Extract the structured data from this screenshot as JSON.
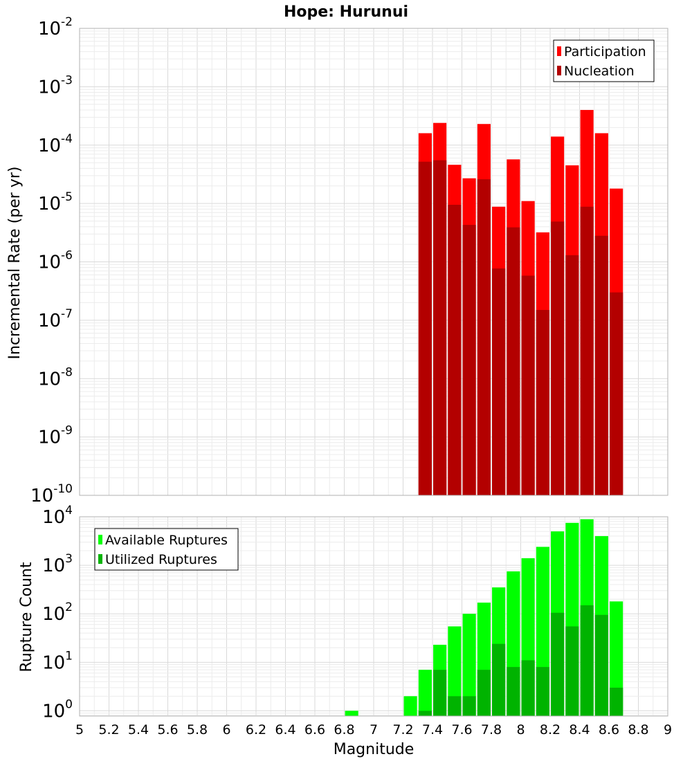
{
  "chart_data": [
    {
      "type": "bar",
      "title": "Hope: Hurunui",
      "ylabel": "Incremental Rate (per yr)",
      "yscale": "log",
      "ylim": [
        1e-10,
        0.01
      ],
      "xlim": [
        5,
        9
      ],
      "y_ticks": [
        {
          "base": "10",
          "exp": "-10"
        },
        {
          "base": "10",
          "exp": "-9"
        },
        {
          "base": "10",
          "exp": "-8"
        },
        {
          "base": "10",
          "exp": "-7"
        },
        {
          "base": "10",
          "exp": "-6"
        },
        {
          "base": "10",
          "exp": "-5"
        },
        {
          "base": "10",
          "exp": "-4"
        },
        {
          "base": "10",
          "exp": "-3"
        },
        {
          "base": "10",
          "exp": "-2"
        }
      ],
      "legend_position": "top-right",
      "grid": true,
      "x": [
        7.35,
        7.45,
        7.55,
        7.65,
        7.75,
        7.85,
        7.95,
        8.05,
        8.15,
        8.25,
        8.35,
        8.45,
        8.55,
        8.65
      ],
      "series": [
        {
          "name": "Participation",
          "color": "#ff0000",
          "values": [
            0.00016,
            0.00024,
            4.6e-05,
            2.7e-05,
            0.00023,
            8.8e-06,
            5.7e-05,
            1.1e-05,
            3.2e-06,
            0.00014,
            4.5e-05,
            0.0004,
            0.00016,
            1.8e-05
          ]
        },
        {
          "name": "Nucleation",
          "color": "#b30000",
          "values": [
            5.2e-05,
            5.5e-05,
            9.5e-06,
            4.3e-06,
            2.6e-05,
            7.7e-07,
            3.9e-06,
            5.8e-07,
            1.5e-07,
            4.9e-06,
            1.3e-06,
            8.8e-06,
            2.8e-06,
            3e-07
          ]
        }
      ]
    },
    {
      "type": "bar",
      "ylabel": "Rupture Count",
      "xlabel": "Magnitude",
      "yscale": "log",
      "ylim": [
        0.78,
        10000
      ],
      "xlim": [
        5,
        9
      ],
      "x_ticks": [
        "5",
        "5.2",
        "5.4",
        "5.6",
        "5.8",
        "6",
        "6.2",
        "6.4",
        "6.6",
        "6.8",
        "7",
        "7.2",
        "7.4",
        "7.6",
        "7.8",
        "8",
        "8.2",
        "8.4",
        "8.6",
        "8.8",
        "9"
      ],
      "y_ticks": [
        {
          "base": "10",
          "exp": "0"
        },
        {
          "base": "10",
          "exp": "1"
        },
        {
          "base": "10",
          "exp": "2"
        },
        {
          "base": "10",
          "exp": "3"
        },
        {
          "base": "10",
          "exp": "4"
        }
      ],
      "legend_position": "top-left",
      "grid": true,
      "x": [
        6.85,
        7.25,
        7.35,
        7.45,
        7.55,
        7.65,
        7.75,
        7.85,
        7.95,
        8.05,
        8.15,
        8.25,
        8.35,
        8.45,
        8.55,
        8.65
      ],
      "series": [
        {
          "name": "Available Ruptures",
          "color": "#00ff00",
          "values": [
            1,
            2,
            7,
            23,
            55,
            100,
            170,
            350,
            750,
            1400,
            2400,
            5000,
            7500,
            8900,
            4000,
            180
          ]
        },
        {
          "name": "Utilized Ruptures",
          "color": "#00b300",
          "values": [
            0,
            0,
            1,
            7,
            2,
            2,
            7,
            24,
            8,
            11,
            8,
            105,
            55,
            150,
            95,
            3
          ]
        }
      ]
    }
  ]
}
